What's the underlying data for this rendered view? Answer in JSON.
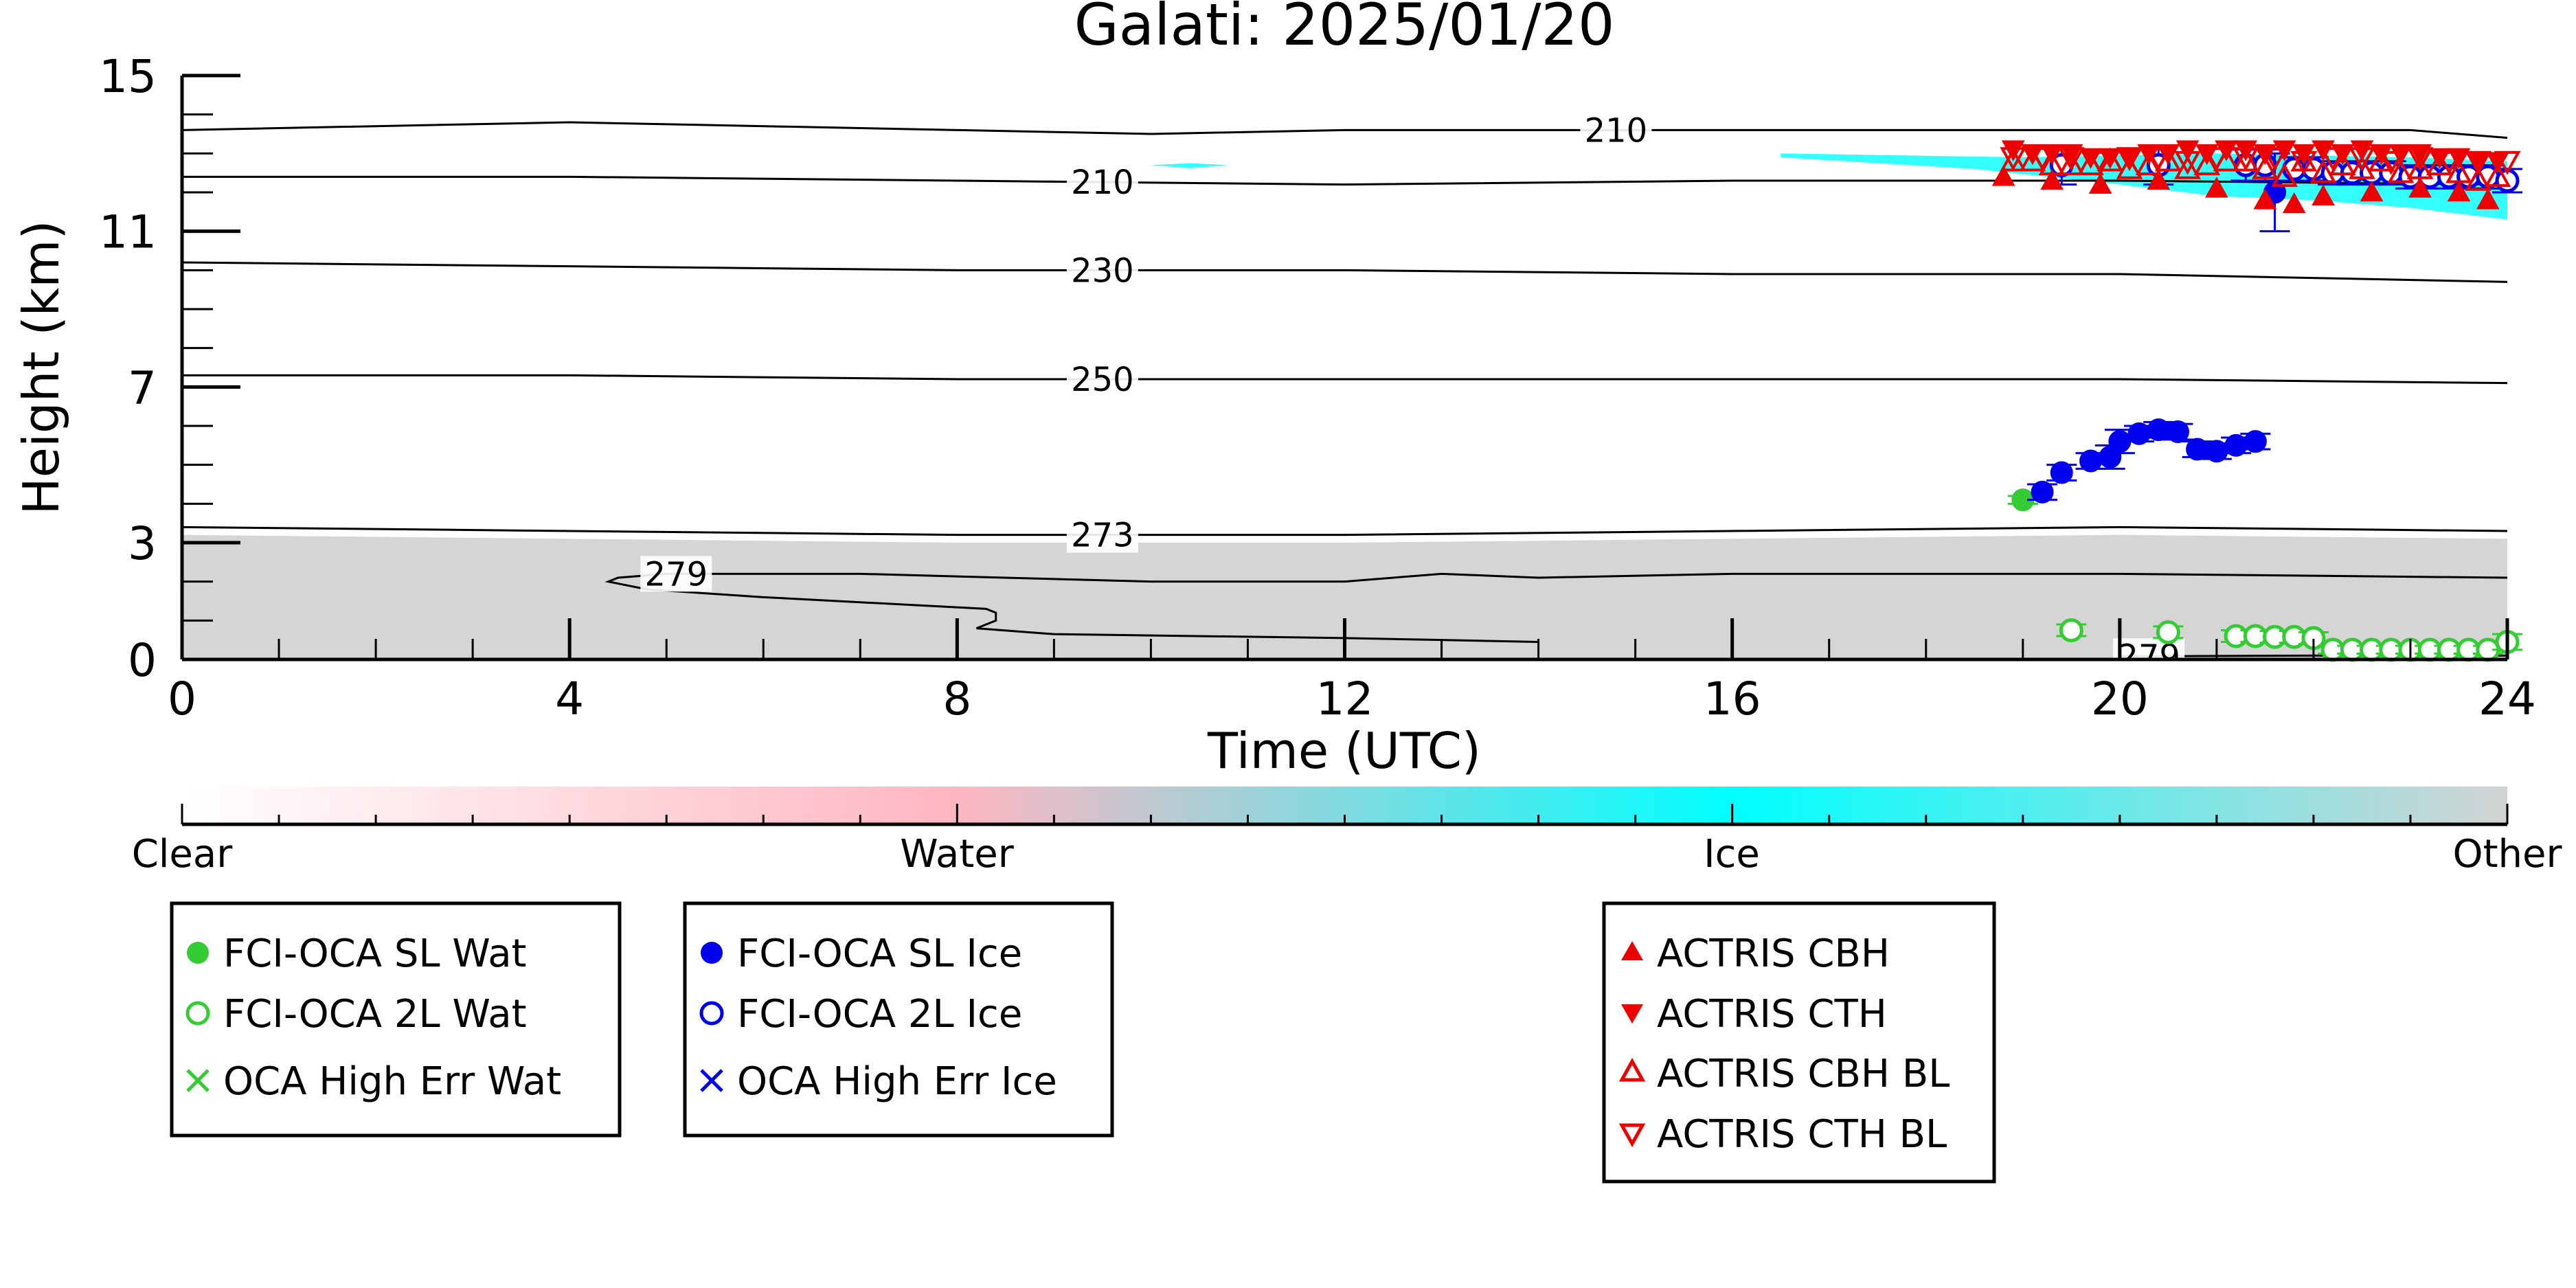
{
  "chart_data": {
    "type": "scatter",
    "title": "Galati: 2025/01/20",
    "xlabel": "Time (UTC)",
    "ylabel": "Height (km)",
    "xlim": [
      0,
      24
    ],
    "ylim": [
      0,
      15
    ],
    "x_ticks": [
      "0",
      "4",
      "8",
      "12",
      "16",
      "20",
      "24"
    ],
    "y_ticks": [
      "0",
      "3",
      "7",
      "11",
      "15"
    ],
    "colors": {
      "clear": "#ffffff",
      "water": "#ffb6c1",
      "ice": "#00ffff",
      "other": "#d3d3d3",
      "oca_water": "#33cc33",
      "oca_ice": "#0000ee",
      "actris": "#ee0000"
    },
    "colorbar": {
      "labels": [
        "Clear",
        "Water",
        "Ice",
        "Other"
      ]
    },
    "temperature_contours": [
      {
        "label": "210",
        "label_x": 14.8,
        "points": [
          [
            0,
            13.6
          ],
          [
            4,
            13.8
          ],
          [
            8,
            13.6
          ],
          [
            10,
            13.5
          ],
          [
            12,
            13.6
          ],
          [
            16,
            13.6
          ],
          [
            20,
            13.6
          ],
          [
            23,
            13.6
          ],
          [
            24,
            13.4
          ]
        ]
      },
      {
        "label": "210",
        "label_x": 9.5,
        "points": [
          [
            0,
            12.4
          ],
          [
            4,
            12.4
          ],
          [
            8,
            12.3
          ],
          [
            12,
            12.2
          ],
          [
            16,
            12.3
          ],
          [
            20,
            12.3
          ],
          [
            24,
            12.2
          ]
        ]
      },
      {
        "label": "230",
        "label_x": 9.5,
        "points": [
          [
            0,
            10.2
          ],
          [
            4,
            10.1
          ],
          [
            8,
            10.0
          ],
          [
            12,
            10.0
          ],
          [
            16,
            9.9
          ],
          [
            20,
            9.9
          ],
          [
            24,
            9.7
          ]
        ]
      },
      {
        "label": "250",
        "label_x": 9.5,
        "points": [
          [
            0,
            7.3
          ],
          [
            4,
            7.3
          ],
          [
            8,
            7.2
          ],
          [
            12,
            7.2
          ],
          [
            16,
            7.2
          ],
          [
            20,
            7.2
          ],
          [
            24,
            7.1
          ]
        ]
      },
      {
        "label": "273",
        "label_x": 9.5,
        "points": [
          [
            0,
            3.4
          ],
          [
            4,
            3.3
          ],
          [
            8,
            3.2
          ],
          [
            12,
            3.2
          ],
          [
            16,
            3.3
          ],
          [
            20,
            3.4
          ],
          [
            24,
            3.3
          ]
        ]
      },
      {
        "label": "279",
        "label_x": 5.1,
        "points": [
          [
            24,
            2.1
          ],
          [
            20,
            2.2
          ],
          [
            16,
            2.2
          ],
          [
            14,
            2.1
          ],
          [
            13,
            2.2
          ],
          [
            12,
            2.0
          ],
          [
            10,
            2.0
          ],
          [
            7,
            2.2
          ],
          [
            5,
            2.2
          ],
          [
            4.5,
            2.1
          ],
          [
            4.4,
            2.0
          ],
          [
            4.8,
            1.8
          ],
          [
            6,
            1.6
          ],
          [
            8.3,
            1.3
          ],
          [
            8.4,
            1.2
          ],
          [
            8.4,
            1.0
          ],
          [
            8.2,
            0.8
          ],
          [
            9,
            0.65
          ],
          [
            12,
            0.55
          ],
          [
            13,
            0.5
          ],
          [
            14,
            0.45
          ]
        ]
      },
      {
        "label": "279",
        "label_x": 20.3,
        "points": [
          [
            20.0,
            0.08
          ],
          [
            22,
            0.1
          ],
          [
            24,
            0.1
          ]
        ]
      }
    ],
    "series": [
      {
        "name": "FCI-OCA SL Wat",
        "x": [
          19.0
        ],
        "y": [
          4.1
        ],
        "err": [
          0.1
        ]
      },
      {
        "name": "FCI-OCA 2L Wat",
        "x": [
          19.5,
          20.5,
          21.2,
          21.4,
          21.6,
          21.8,
          22.0,
          22.2,
          22.4,
          22.6,
          22.8,
          23.0,
          23.2,
          23.4,
          23.6,
          23.8,
          24.0
        ],
        "y": [
          0.75,
          0.7,
          0.6,
          0.6,
          0.58,
          0.58,
          0.55,
          0.25,
          0.25,
          0.25,
          0.25,
          0.25,
          0.25,
          0.25,
          0.25,
          0.25,
          0.45
        ],
        "err": [
          0.15,
          0.15,
          0.15,
          0.15,
          0.15,
          0.15,
          0.15,
          0.1,
          0.1,
          0.1,
          0.1,
          0.1,
          0.1,
          0.1,
          0.1,
          0.1,
          0.2
        ]
      },
      {
        "name": "FCI-OCA SL Ice",
        "x": [
          19.2,
          19.4,
          19.7,
          19.9,
          20.0,
          20.2,
          20.4,
          20.6,
          20.8,
          21.0,
          21.2,
          21.4
        ],
        "y": [
          4.3,
          4.8,
          5.1,
          5.2,
          5.6,
          5.8,
          5.9,
          5.85,
          5.4,
          5.35,
          5.5,
          5.6
        ],
        "err": [
          0.2,
          0.2,
          0.2,
          0.3,
          0.3,
          0.2,
          0.2,
          0.2,
          0.2,
          0.2,
          0.2,
          0.2
        ]
      },
      {
        "name": "FCI-OCA 2L Ice",
        "x": [
          19.4,
          20.4,
          21.3,
          21.5,
          21.8,
          22.0,
          22.2,
          22.4,
          22.6,
          22.8,
          23.0,
          23.2,
          23.4,
          23.6,
          23.8,
          24.0
        ],
        "y": [
          12.7,
          12.7,
          12.7,
          12.7,
          12.6,
          12.6,
          12.5,
          12.5,
          12.5,
          12.5,
          12.4,
          12.4,
          12.4,
          12.4,
          12.4,
          12.3
        ],
        "err": [
          0.5,
          0.5,
          0.4,
          0.4,
          0.3,
          0.3,
          0.3,
          0.3,
          0.3,
          0.3,
          0.3,
          0.3,
          0.3,
          0.3,
          0.3,
          0.3
        ]
      },
      {
        "name": "OCA High Err Wat",
        "x": [],
        "y": []
      },
      {
        "name": "OCA High Err Ice",
        "x": [
          21.6
        ],
        "y": [
          12.0
        ],
        "err": [
          1.0
        ],
        "marker": "filled"
      },
      {
        "name": "ACTRIS CBH",
        "x": [
          18.8,
          19.3,
          19.8,
          20.4,
          21.0,
          21.5,
          21.8,
          22.1,
          22.6,
          23.1,
          23.5,
          23.8
        ],
        "y": [
          12.4,
          12.3,
          12.2,
          12.3,
          12.1,
          11.8,
          11.7,
          11.9,
          12.0,
          12.1,
          12.0,
          11.8
        ]
      },
      {
        "name": "ACTRIS CTH",
        "x": [
          18.9,
          19.1,
          19.3,
          19.5,
          19.7,
          19.9,
          20.1,
          20.3,
          20.5,
          20.7,
          20.9,
          21.1,
          21.3,
          21.5,
          21.7,
          21.9,
          22.1,
          22.3,
          22.5,
          22.7,
          22.9,
          23.1,
          23.3,
          23.5,
          23.7,
          23.9
        ],
        "y": [
          13.1,
          13.0,
          13.0,
          13.0,
          12.9,
          12.9,
          12.9,
          13.0,
          13.0,
          13.1,
          13.0,
          13.1,
          13.1,
          13.0,
          13.1,
          13.0,
          13.1,
          13.0,
          13.1,
          13.0,
          13.0,
          13.0,
          12.9,
          12.9,
          12.8,
          12.8
        ]
      },
      {
        "name": "ACTRIS CBH BL",
        "x": [
          18.9,
          19.1,
          19.3,
          19.5,
          19.7,
          19.9,
          20.1,
          20.3,
          20.5,
          20.7,
          20.9,
          21.1,
          21.3,
          21.5,
          21.7,
          21.9,
          22.1,
          22.3,
          22.5,
          22.7,
          22.9,
          23.1,
          23.3,
          23.5,
          23.7,
          23.9
        ],
        "y": [
          12.8,
          12.8,
          12.7,
          12.7,
          12.7,
          12.8,
          12.6,
          12.7,
          12.8,
          12.6,
          12.7,
          12.8,
          12.8,
          12.6,
          12.4,
          12.8,
          12.5,
          12.7,
          12.6,
          12.8,
          12.5,
          12.6,
          12.7,
          12.5,
          12.3,
          12.4
        ]
      },
      {
        "name": "ACTRIS CTH BL",
        "x": [
          18.9,
          19.2,
          19.5,
          19.8,
          20.1,
          20.4,
          20.7,
          21.0,
          21.3,
          21.6,
          21.9,
          22.2,
          22.5,
          22.8,
          23.1,
          23.4,
          23.7,
          24.0
        ],
        "y": [
          12.9,
          12.9,
          12.9,
          12.8,
          12.9,
          12.9,
          12.8,
          12.9,
          12.9,
          12.9,
          12.8,
          12.9,
          12.9,
          12.8,
          12.9,
          12.8,
          12.8,
          12.8
        ]
      }
    ],
    "legends": [
      {
        "entries": [
          "FCI-OCA SL Wat",
          "FCI-OCA 2L Wat",
          "OCA High Err Wat"
        ]
      },
      {
        "entries": [
          "FCI-OCA SL Ice",
          "FCI-OCA 2L Ice",
          "OCA High Err Ice"
        ]
      },
      {
        "entries": [
          "ACTRIS CBH",
          "ACTRIS CTH",
          "ACTRIS CBH BL",
          "ACTRIS CTH BL"
        ]
      }
    ],
    "legend_placement": "below"
  }
}
